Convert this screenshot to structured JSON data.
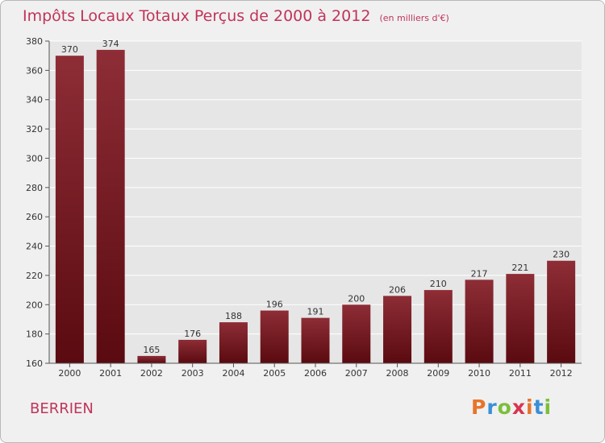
{
  "page": {
    "title": "Impôts Locaux Totaux Perçus de 2000 à 2012",
    "subtitle": "(en milliers d'€)",
    "commune": "BERRIEN",
    "logo": {
      "text": "Proxiti",
      "colors": [
        "#e8732a",
        "#3a8fd6",
        "#7bbf3a",
        "#d8344f",
        "#e8732a",
        "#3a8fd6",
        "#7bbf3a"
      ]
    }
  },
  "colors": {
    "bar_top": "#8e2d36",
    "bar_bottom": "#5a0a10",
    "grid": "#ffffff",
    "title": "#c0345a"
  },
  "chart_data": {
    "type": "bar",
    "title": "Impôts Locaux Totaux Perçus de 2000 à 2012",
    "xlabel": "",
    "ylabel": "",
    "categories": [
      "2000",
      "2001",
      "2002",
      "2003",
      "2004",
      "2005",
      "2006",
      "2007",
      "2008",
      "2009",
      "2010",
      "2011",
      "2012"
    ],
    "values": [
      370,
      374,
      165,
      176,
      188,
      196,
      191,
      200,
      206,
      210,
      217,
      221,
      230
    ],
    "ylim": [
      160,
      380
    ],
    "yticks": [
      160,
      180,
      200,
      220,
      240,
      260,
      280,
      300,
      320,
      340,
      360,
      380
    ],
    "grid": true
  }
}
